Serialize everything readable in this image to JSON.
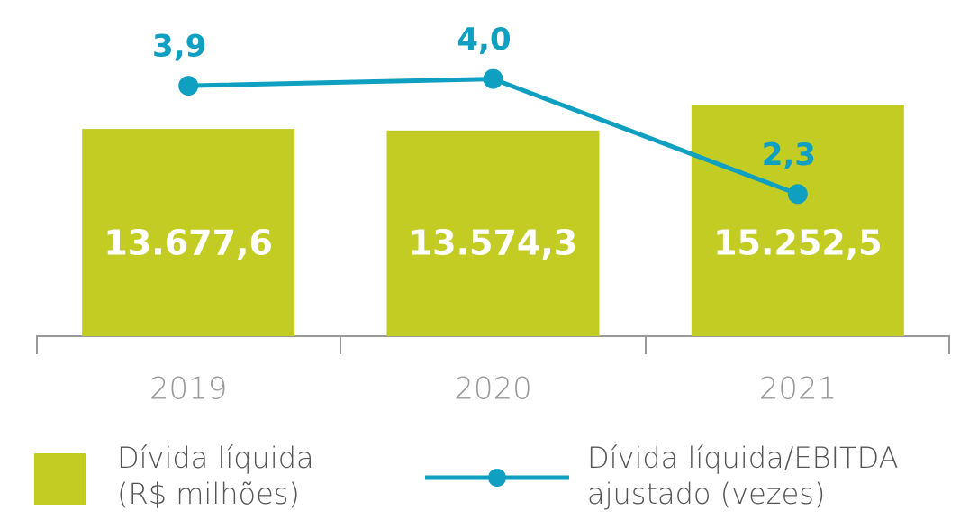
{
  "chart_data": {
    "type": "bar_line",
    "categories": [
      "2019",
      "2020",
      "2021"
    ],
    "series": [
      {
        "name": "Dívida líquida (R$ milhões)",
        "type": "bar",
        "color": "#c3cc23",
        "axis": "y",
        "values": [
          13677.6,
          13574.3,
          15252.5
        ],
        "value_labels": [
          "13.677,6",
          "13.574,3",
          "15.252,5"
        ]
      },
      {
        "name": "Dívida líquida/EBITDA ajustado (vezes)",
        "type": "line",
        "color": "#0e9fc1",
        "axis": "y2",
        "values": [
          3.9,
          4.0,
          2.3
        ],
        "value_labels": [
          "3,9",
          "4,0",
          "2,3"
        ]
      }
    ],
    "ylim": [
      0,
      21000
    ],
    "y2lim": [
      0.2,
      4.9
    ],
    "legend": "bottom"
  }
}
